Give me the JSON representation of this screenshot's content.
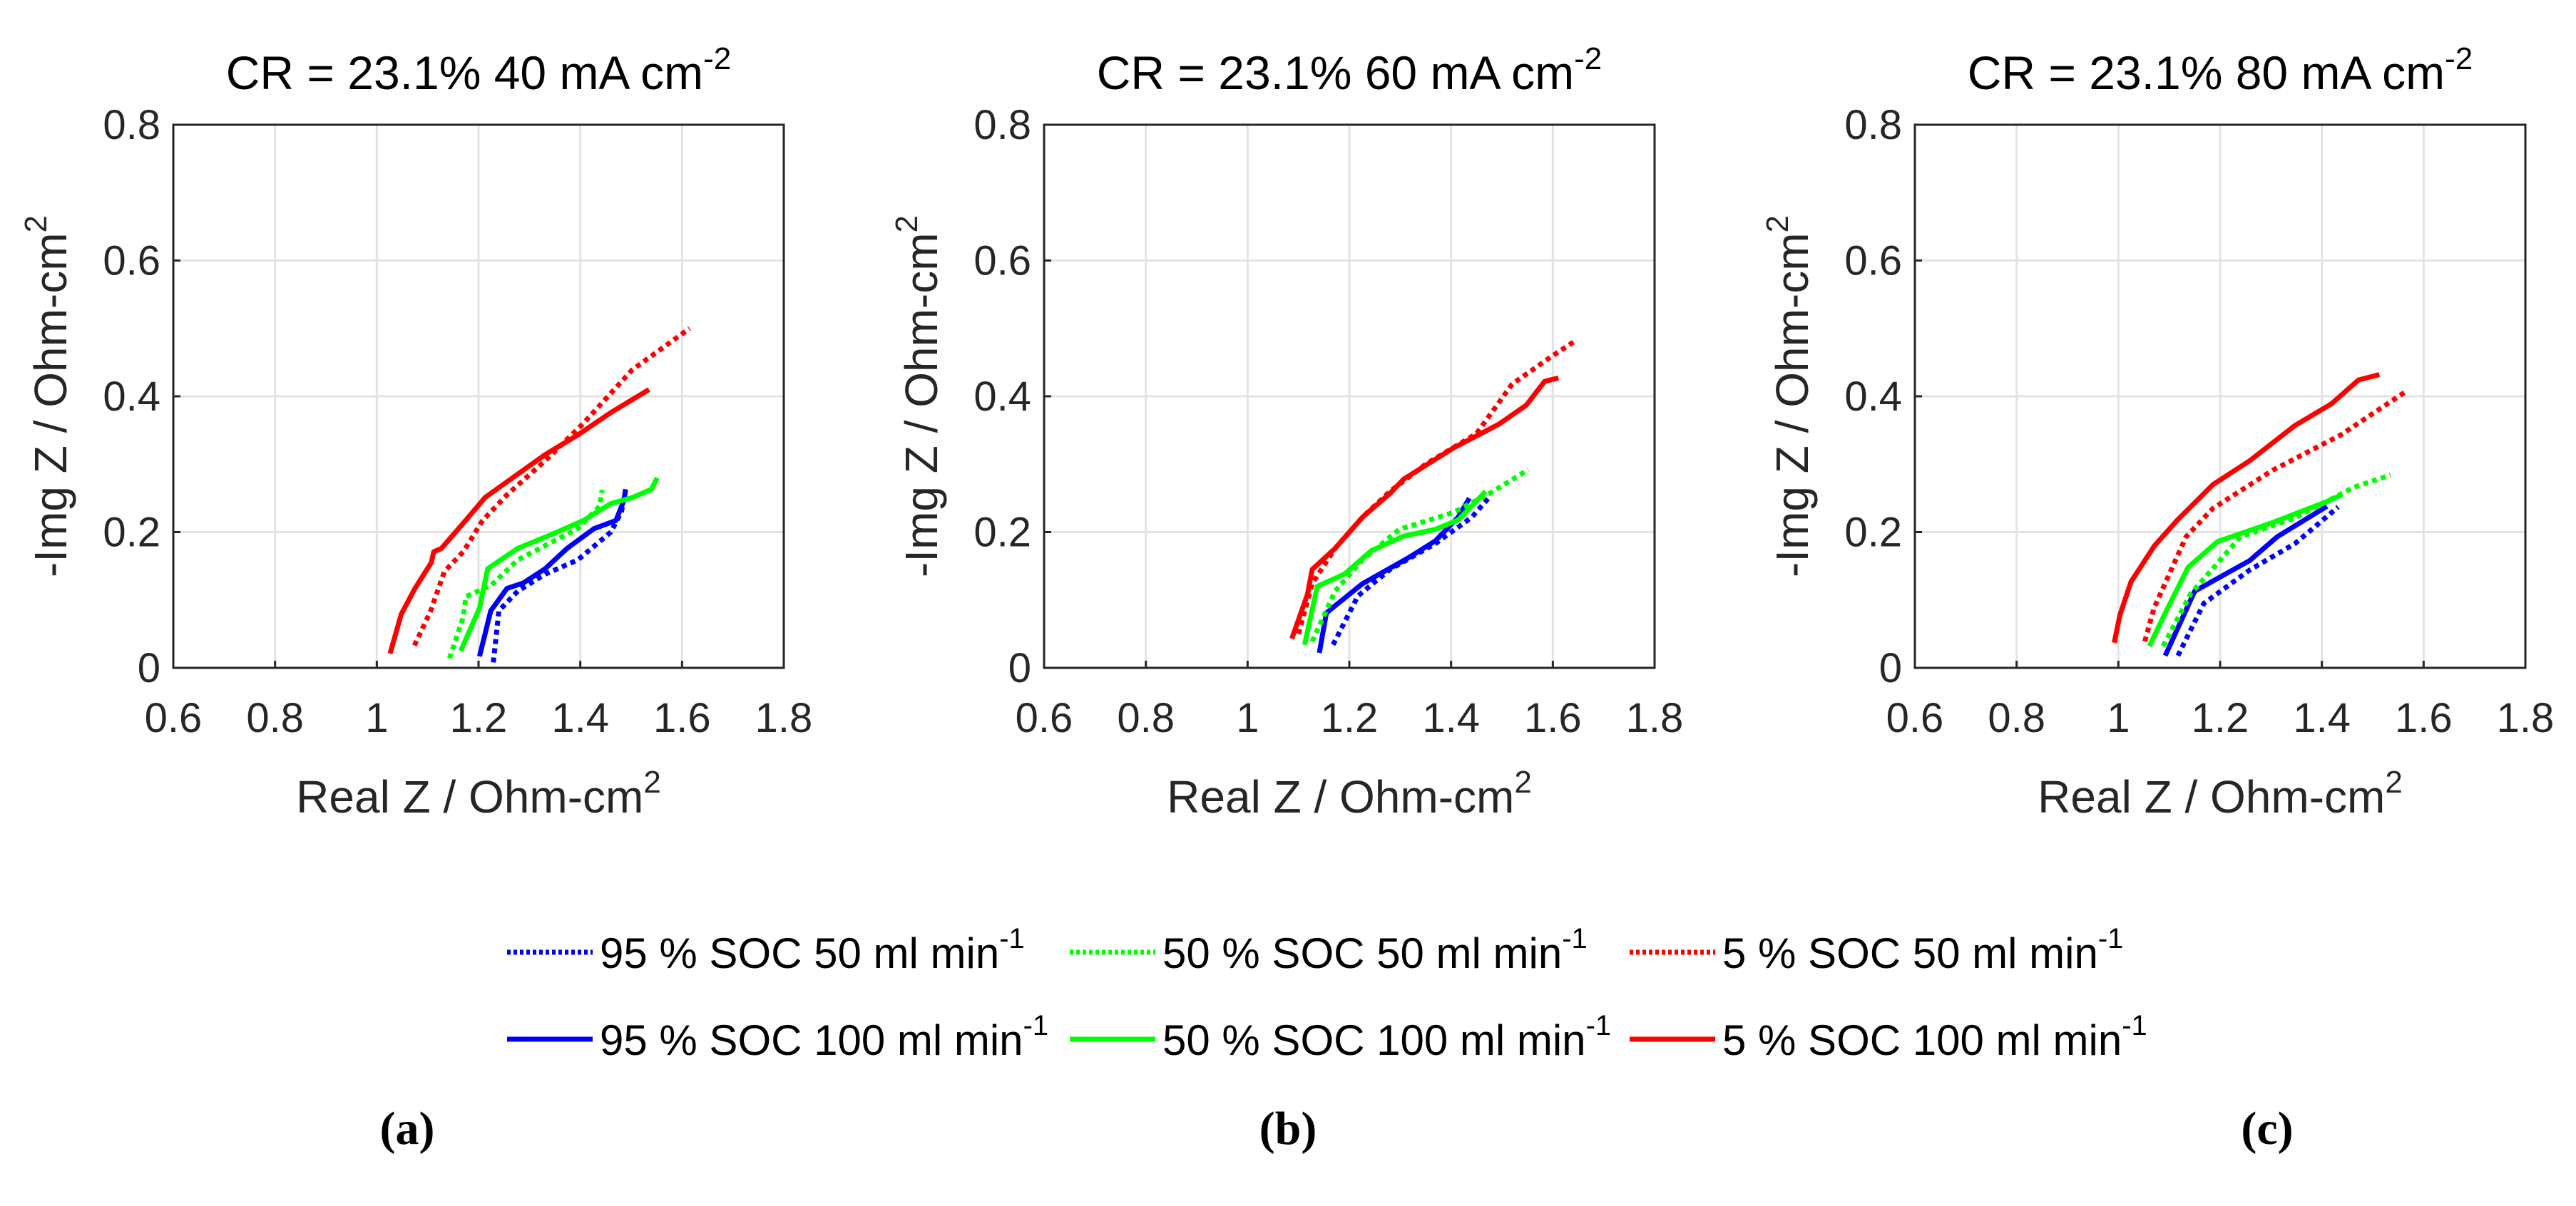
{
  "chart_data": {
    "type": "line",
    "panels": [
      {
        "title": "CR = 23.1%  40 mA cm",
        "title_sup": "-2",
        "xlabel": "Real Z / Ohm-cm",
        "xlabel_sup": "2",
        "ylabel": "-Img Z / Ohm-cm",
        "ylabel_sup": "2",
        "xlim": [
          0.6,
          1.8
        ],
        "ylim": [
          0,
          0.8
        ],
        "xticks": [
          "0.6",
          "0.8",
          "1",
          "1.2",
          "1.4",
          "1.6",
          "1.8"
        ],
        "yticks": [
          "0",
          "0.2",
          "0.4",
          "0.6",
          "0.8"
        ],
        "grid": true,
        "caption": "(a)",
        "series": [
          {
            "name": "95 % SOC 50 ml min-1",
            "color": "#0000ff",
            "style": "dotted",
            "points": [
              [
                1.229,
                0.008
              ],
              [
                1.24,
                0.084
              ],
              [
                1.277,
                0.113
              ],
              [
                1.331,
                0.138
              ],
              [
                1.395,
                0.159
              ],
              [
                1.46,
                0.2
              ],
              [
                1.481,
                0.23
              ],
              [
                1.489,
                0.263
              ]
            ]
          },
          {
            "name": "95 % SOC 100 ml min-1",
            "color": "#0000ff",
            "style": "solid",
            "points": [
              [
                1.202,
                0.017
              ],
              [
                1.224,
                0.084
              ],
              [
                1.256,
                0.117
              ],
              [
                1.288,
                0.125
              ],
              [
                1.331,
                0.146
              ],
              [
                1.374,
                0.176
              ],
              [
                1.427,
                0.205
              ],
              [
                1.47,
                0.217
              ],
              [
                1.486,
                0.247
              ],
              [
                1.489,
                0.263
              ]
            ]
          },
          {
            "name": "50 % SOC 50 ml min-1",
            "color": "#00ff00",
            "style": "dotted",
            "points": [
              [
                1.143,
                0.014
              ],
              [
                1.17,
                0.075
              ],
              [
                1.175,
                0.105
              ],
              [
                1.224,
                0.121
              ],
              [
                1.277,
                0.159
              ],
              [
                1.331,
                0.18
              ],
              [
                1.395,
                0.205
              ],
              [
                1.438,
                0.238
              ],
              [
                1.443,
                0.262
              ]
            ]
          },
          {
            "name": "50 % SOC 100 ml min-1",
            "color": "#00ff00",
            "style": "solid",
            "points": [
              [
                1.165,
                0.025
              ],
              [
                1.202,
                0.088
              ],
              [
                1.218,
                0.146
              ],
              [
                1.277,
                0.176
              ],
              [
                1.342,
                0.196
              ],
              [
                1.406,
                0.217
              ],
              [
                1.46,
                0.242
              ],
              [
                1.503,
                0.251
              ],
              [
                1.54,
                0.263
              ],
              [
                1.551,
                0.28
              ]
            ]
          },
          {
            "name": "5 % SOC 50 ml min-1",
            "color": "#ff0000",
            "style": "dotted",
            "points": [
              [
                1.074,
                0.033
              ],
              [
                1.106,
                0.084
              ],
              [
                1.133,
                0.142
              ],
              [
                1.17,
                0.171
              ],
              [
                1.208,
                0.217
              ],
              [
                1.256,
                0.255
              ],
              [
                1.331,
                0.305
              ],
              [
                1.406,
                0.36
              ],
              [
                1.502,
                0.439
              ],
              [
                1.615,
                0.5
              ]
            ]
          },
          {
            "name": "5 % SOC 100 ml min-1",
            "color": "#ff0000",
            "style": "solid",
            "points": [
              [
                1.026,
                0.021
              ],
              [
                1.048,
                0.079
              ],
              [
                1.075,
                0.117
              ],
              [
                1.107,
                0.155
              ],
              [
                1.112,
                0.171
              ],
              [
                1.127,
                0.176
              ],
              [
                1.17,
                0.213
              ],
              [
                1.213,
                0.251
              ],
              [
                1.267,
                0.28
              ],
              [
                1.331,
                0.314
              ],
              [
                1.395,
                0.343
              ],
              [
                1.46,
                0.376
              ],
              [
                1.535,
                0.41
              ]
            ]
          }
        ]
      },
      {
        "title": "CR = 23.1%  60 mA cm",
        "title_sup": "-2",
        "xlabel": "Real Z / Ohm-cm",
        "xlabel_sup": "2",
        "ylabel": "-Img Z / Ohm-cm",
        "ylabel_sup": "2",
        "xlim": [
          0.6,
          1.8
        ],
        "ylim": [
          0,
          0.8
        ],
        "xticks": [
          "0.6",
          "0.8",
          "1",
          "1.2",
          "1.4",
          "1.6",
          "1.8"
        ],
        "yticks": [
          "0",
          "0.2",
          "0.4",
          "0.6",
          "0.8"
        ],
        "grid": true,
        "caption": "(b)",
        "series": [
          {
            "name": "95 % SOC 50 ml min-1",
            "color": "#0000ff",
            "style": "dotted",
            "points": [
              [
                1.168,
                0.034
              ],
              [
                1.217,
                0.106
              ],
              [
                1.28,
                0.145
              ],
              [
                1.369,
                0.183
              ],
              [
                1.441,
                0.222
              ],
              [
                1.477,
                0.253
              ]
            ]
          },
          {
            "name": "95 % SOC 100 ml min-1",
            "color": "#0000ff",
            "style": "solid",
            "points": [
              [
                1.141,
                0.022
              ],
              [
                1.155,
                0.081
              ],
              [
                1.226,
                0.124
              ],
              [
                1.316,
                0.162
              ],
              [
                1.369,
                0.187
              ],
              [
                1.414,
                0.222
              ],
              [
                1.436,
                0.25
              ]
            ]
          },
          {
            "name": "50 % SOC 50 ml min-1",
            "color": "#00ff00",
            "style": "dotted",
            "points": [
              [
                1.127,
                0.039
              ],
              [
                1.172,
                0.113
              ],
              [
                1.226,
                0.159
              ],
              [
                1.298,
                0.204
              ],
              [
                1.405,
                0.229
              ],
              [
                1.476,
                0.257
              ],
              [
                1.552,
                0.292
              ]
            ]
          },
          {
            "name": "50 % SOC 100 ml min-1",
            "color": "#00ff00",
            "style": "solid",
            "points": [
              [
                1.112,
                0.034
              ],
              [
                1.137,
                0.12
              ],
              [
                1.19,
                0.138
              ],
              [
                1.244,
                0.173
              ],
              [
                1.307,
                0.194
              ],
              [
                1.369,
                0.204
              ],
              [
                1.414,
                0.218
              ],
              [
                1.468,
                0.26
              ]
            ]
          },
          {
            "name": "5 % SOC 50 ml min-1",
            "color": "#ff0000",
            "style": "dotted",
            "points": [
              [
                1.1,
                0.05
              ],
              [
                1.127,
                0.124
              ],
              [
                1.172,
                0.176
              ],
              [
                1.226,
                0.222
              ],
              [
                1.28,
                0.26
              ],
              [
                1.35,
                0.3
              ],
              [
                1.45,
                0.345
              ],
              [
                1.52,
                0.418
              ],
              [
                1.6,
                0.46
              ],
              [
                1.645,
                0.482
              ]
            ]
          },
          {
            "name": "5 % SOC 100 ml min-1",
            "color": "#ff0000",
            "style": "solid",
            "points": [
              [
                1.087,
                0.043
              ],
              [
                1.118,
                0.109
              ],
              [
                1.127,
                0.145
              ],
              [
                1.172,
                0.176
              ],
              [
                1.226,
                0.222
              ],
              [
                1.28,
                0.257
              ],
              [
                1.307,
                0.278
              ],
              [
                1.405,
                0.324
              ],
              [
                1.494,
                0.359
              ],
              [
                1.548,
                0.387
              ],
              [
                1.584,
                0.422
              ],
              [
                1.611,
                0.427
              ]
            ]
          }
        ]
      },
      {
        "title": "CR = 23.1%  80 mA cm",
        "title_sup": "-2",
        "xlabel": "Real Z / Ohm-cm",
        "xlabel_sup": "2",
        "ylabel": "-Img Z / Ohm-cm",
        "ylabel_sup": "2",
        "xlim": [
          0.6,
          1.8
        ],
        "ylim": [
          0,
          0.8
        ],
        "xticks": [
          "0.6",
          "0.8",
          "1",
          "1.2",
          "1.4",
          "1.6",
          "1.8"
        ],
        "yticks": [
          "0",
          "0.2",
          "0.4",
          "0.6",
          "0.8"
        ],
        "grid": true,
        "caption": "(c)",
        "series": [
          {
            "name": "95 % SOC 50 ml min-1",
            "color": "#0000ff",
            "style": "dotted",
            "points": [
              [
                1.117,
                0.018
              ],
              [
                1.168,
                0.095
              ],
              [
                1.258,
                0.144
              ],
              [
                1.347,
                0.183
              ],
              [
                1.432,
                0.237
              ]
            ]
          },
          {
            "name": "95 % SOC 100 ml min-1",
            "color": "#0000ff",
            "style": "solid",
            "points": [
              [
                1.092,
                0.018
              ],
              [
                1.15,
                0.113
              ],
              [
                1.258,
                0.158
              ],
              [
                1.312,
                0.193
              ],
              [
                1.41,
                0.238
              ]
            ]
          },
          {
            "name": "50 % SOC 50 ml min-1",
            "color": "#00ff00",
            "style": "dotted",
            "points": [
              [
                1.088,
                0.032
              ],
              [
                1.142,
                0.109
              ],
              [
                1.24,
                0.193
              ],
              [
                1.347,
                0.221
              ],
              [
                1.463,
                0.266
              ],
              [
                1.535,
                0.284
              ]
            ]
          },
          {
            "name": "50 % SOC 100 ml min-1",
            "color": "#00ff00",
            "style": "solid",
            "points": [
              [
                1.061,
                0.032
              ],
              [
                1.097,
                0.088
              ],
              [
                1.137,
                0.148
              ],
              [
                1.195,
                0.186
              ],
              [
                1.303,
                0.214
              ],
              [
                1.41,
                0.245
              ],
              [
                1.44,
                0.255
              ]
            ]
          },
          {
            "name": "5 % SOC 50 ml min-1",
            "color": "#ff0000",
            "style": "dotted",
            "points": [
              [
                1.052,
                0.039
              ],
              [
                1.07,
                0.088
              ],
              [
                1.133,
                0.193
              ],
              [
                1.186,
                0.235
              ],
              [
                1.303,
                0.291
              ],
              [
                1.437,
                0.343
              ],
              [
                1.567,
                0.408
              ]
            ]
          },
          {
            "name": "5 % SOC 100 ml min-1",
            "color": "#ff0000",
            "style": "solid",
            "points": [
              [
                0.992,
                0.037
              ],
              [
                1.003,
                0.078
              ],
              [
                1.025,
                0.127
              ],
              [
                1.052,
                0.158
              ],
              [
                1.07,
                0.179
              ],
              [
                1.115,
                0.217
              ],
              [
                1.186,
                0.27
              ],
              [
                1.258,
                0.305
              ],
              [
                1.347,
                0.357
              ],
              [
                1.419,
                0.389
              ],
              [
                1.472,
                0.424
              ],
              [
                1.513,
                0.432
              ]
            ]
          }
        ]
      }
    ],
    "legend": {
      "placement": "bottom-center",
      "entries": [
        {
          "label": "95 % SOC 50 ml min",
          "sup": "-1",
          "color": "#0000ff",
          "style": "dotted"
        },
        {
          "label": "50 % SOC 50 ml min",
          "sup": "-1",
          "color": "#00ff00",
          "style": "dotted"
        },
        {
          "label": "5 % SOC 50 ml min",
          "sup": "-1",
          "color": "#ff0000",
          "style": "dotted"
        },
        {
          "label": "95 % SOC 100 ml min",
          "sup": "-1",
          "color": "#0000ff",
          "style": "solid"
        },
        {
          "label": "50 % SOC 100 ml min",
          "sup": "-1",
          "color": "#00ff00",
          "style": "solid"
        },
        {
          "label": "5 % SOC 100 ml min",
          "sup": "-1",
          "color": "#ff0000",
          "style": "solid"
        }
      ]
    }
  }
}
